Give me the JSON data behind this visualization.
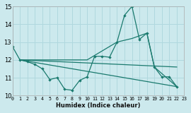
{
  "xlabel": "Humidex (Indice chaleur)",
  "xlim": [
    0,
    23
  ],
  "ylim": [
    10,
    15
  ],
  "yticks": [
    10,
    11,
    12,
    13,
    14,
    15
  ],
  "xticks": [
    0,
    1,
    2,
    3,
    4,
    5,
    6,
    7,
    8,
    9,
    10,
    11,
    12,
    13,
    14,
    15,
    16,
    17,
    18,
    19,
    20,
    21,
    22,
    23
  ],
  "bg_color": "#cce9ed",
  "grid_color": "#b0d8de",
  "line_color": "#1a7a6e",
  "series_main_x": [
    0,
    1,
    2,
    3,
    4,
    5,
    6,
    7,
    8,
    9,
    10,
    11,
    12,
    13,
    14,
    15,
    16,
    17,
    18,
    19,
    20,
    21,
    22
  ],
  "series_main_y": [
    12.75,
    12.0,
    11.9,
    11.75,
    11.5,
    10.9,
    11.0,
    10.35,
    10.3,
    10.85,
    11.05,
    12.2,
    12.2,
    12.15,
    13.0,
    14.5,
    15.0,
    13.15,
    13.5,
    11.6,
    11.05,
    11.05,
    10.5
  ],
  "trend1_x": [
    1,
    22
  ],
  "trend1_y": [
    12.0,
    10.5
  ],
  "trend2_x": [
    1,
    10,
    14,
    16,
    18,
    19,
    22
  ],
  "trend2_y": [
    12.0,
    12.0,
    13.0,
    13.2,
    13.5,
    11.6,
    10.5
  ],
  "trend3_x": [
    1,
    22
  ],
  "trend3_y": [
    12.0,
    11.6
  ]
}
